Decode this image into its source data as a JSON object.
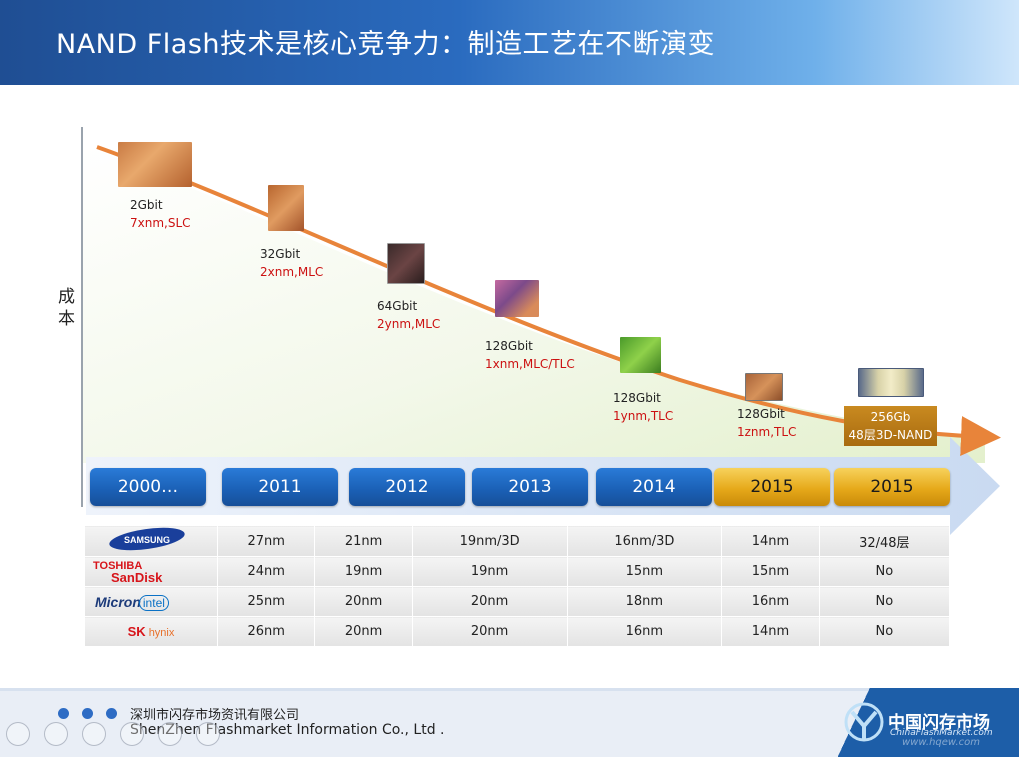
{
  "header": {
    "title": "NAND Flash技术是核心竞争力：制造工艺在不断演变"
  },
  "axis": {
    "ylabel": "成本"
  },
  "milestones": [
    {
      "capacity": "2Gbit",
      "process": "7xnm,SLC"
    },
    {
      "capacity": "32Gbit",
      "process": "2xnm,MLC"
    },
    {
      "capacity": "64Gbit",
      "process": "2ynm,MLC"
    },
    {
      "capacity": "128Gbit",
      "process": "1xnm,MLC/TLC"
    },
    {
      "capacity": "128Gbit",
      "process": "1ynm,TLC"
    },
    {
      "capacity": "128Gbit",
      "process": "1znm,TLC"
    }
  ],
  "highlight_chip": {
    "line1": "256Gb",
    "line2": "48层3D-NAND"
  },
  "timeline": [
    "2000…",
    "2011",
    "2012",
    "2013",
    "2014",
    "2015",
    "2015"
  ],
  "vendors": [
    {
      "name": "SAMSUNG",
      "values": [
        "27nm",
        "21nm",
        "19nm/3D",
        "16nm/3D",
        "14nm",
        "32/48层"
      ]
    },
    {
      "name": "TOSHIBA SanDisk",
      "values": [
        "24nm",
        "19nm",
        "19nm",
        "15nm",
        "15nm",
        "No"
      ]
    },
    {
      "name": "Micron intel",
      "values": [
        "25nm",
        "20nm",
        "20nm",
        "18nm",
        "16nm",
        "No"
      ]
    },
    {
      "name": "SK hynix",
      "values": [
        "26nm",
        "20nm",
        "20nm",
        "16nm",
        "14nm",
        "No"
      ]
    }
  ],
  "footer": {
    "company_cn": "深圳市闪存市场资讯有限公司",
    "company_en": "ShenZhen Flashmarket Information Co., Ltd .",
    "brand_cn": "中国闪存市场",
    "brand_url": "ChinaFlashMarket.com",
    "watermark": "www.hqew.com"
  },
  "colors": {
    "header_blue": "#1f4e93",
    "curve_orange": "#e8843a",
    "process_red": "#cc1111",
    "gold": "#e6a91a"
  }
}
